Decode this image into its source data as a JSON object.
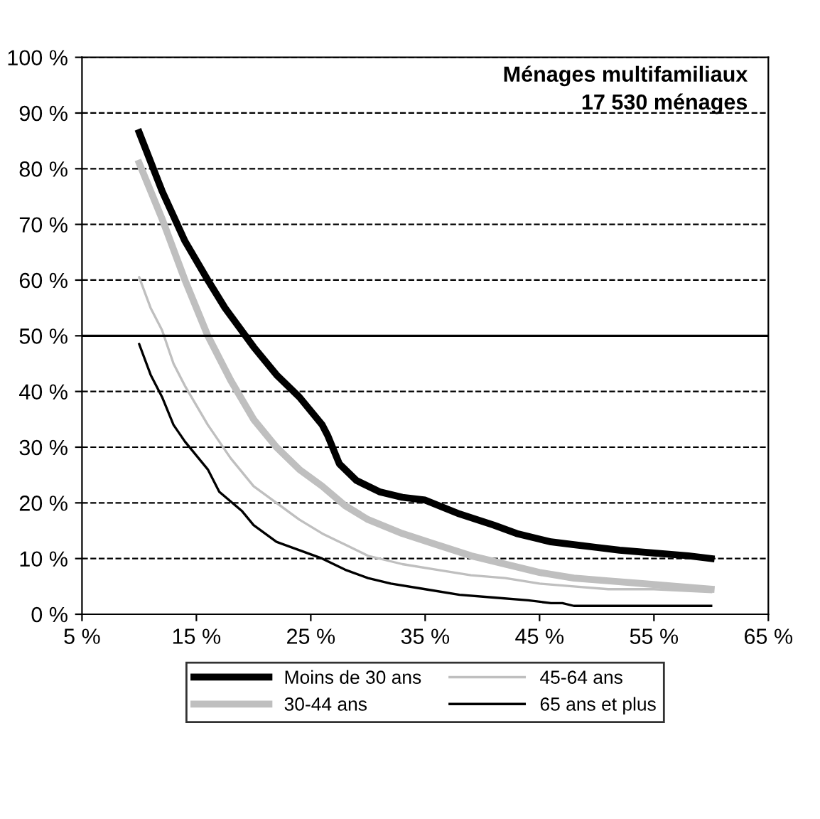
{
  "chart_data": {
    "type": "line",
    "title": "Ménages multifamiliaux",
    "subtitle": "17 530 ménages",
    "xlim": [
      5,
      65
    ],
    "ylim": [
      0,
      100
    ],
    "xticks": [
      {
        "value": 5,
        "label": "5 %"
      },
      {
        "value": 15,
        "label": "15 %"
      },
      {
        "value": 25,
        "label": "25 %"
      },
      {
        "value": 35,
        "label": "35 %"
      },
      {
        "value": 45,
        "label": "45 %"
      },
      {
        "value": 55,
        "label": "55 %"
      },
      {
        "value": 65,
        "label": "65 %"
      }
    ],
    "yticks": [
      {
        "value": 0,
        "label": "0 %"
      },
      {
        "value": 10,
        "label": "10 %"
      },
      {
        "value": 20,
        "label": "20 %"
      },
      {
        "value": 30,
        "label": "30 %"
      },
      {
        "value": 40,
        "label": "40 %"
      },
      {
        "value": 50,
        "label": "50 %"
      },
      {
        "value": 60,
        "label": "60 %"
      },
      {
        "value": 70,
        "label": "70 %"
      },
      {
        "value": 80,
        "label": "80 %"
      },
      {
        "value": 90,
        "label": "90 %"
      },
      {
        "value": 100,
        "label": "100 %"
      }
    ],
    "grid": "y",
    "legend": "bottom",
    "line_style": "solid",
    "ref_lines": [
      {
        "axis": "y",
        "value": 50,
        "color": "#000000"
      }
    ],
    "series": [
      {
        "name": "Moins de 30 ans",
        "color": "#000000",
        "x": [
          10,
          12,
          14,
          16,
          17.5,
          20,
          22,
          24,
          26,
          26.5,
          27.5,
          29,
          31,
          33,
          35,
          38,
          41,
          43,
          46,
          48,
          50,
          52,
          55,
          58,
          60
        ],
        "values": [
          86.5,
          76,
          67,
          60,
          55,
          48,
          43,
          39,
          34,
          32,
          27,
          24,
          22,
          21,
          20.5,
          18,
          16,
          14.5,
          13,
          12.5,
          12,
          11.5,
          11,
          10.5,
          10
        ]
      },
      {
        "name": "30-44 ans",
        "color": "#bfbfbf",
        "x": [
          10,
          12,
          14,
          16,
          18,
          20,
          22,
          24,
          26,
          28,
          30,
          33,
          36,
          39,
          42,
          45,
          48,
          51,
          54,
          57,
          60
        ],
        "values": [
          81,
          71,
          60,
          50,
          42,
          35,
          30,
          26,
          23,
          19.5,
          17,
          14.5,
          12.5,
          10.5,
          9,
          7.5,
          6.5,
          6,
          5.5,
          5,
          4.5
        ]
      },
      {
        "name": "45-64 ans",
        "color": "#bfbfbf",
        "x": [
          10,
          11,
          12,
          13,
          14,
          16,
          18,
          20,
          22,
          24,
          26,
          28,
          30,
          33,
          36,
          39,
          42,
          45,
          48,
          51,
          55,
          60
        ],
        "values": [
          60.5,
          55,
          51,
          45,
          41,
          34,
          28,
          23,
          20,
          17,
          14.5,
          12.5,
          10.5,
          9,
          8,
          7,
          6.5,
          5.5,
          5,
          4.5,
          4.5,
          4
        ]
      },
      {
        "name": "65 ans et plus",
        "color": "#000000",
        "x": [
          10,
          11,
          12,
          13,
          14,
          16,
          17,
          19,
          20,
          22,
          24,
          26,
          28,
          30,
          32,
          35,
          38,
          41,
          44,
          46,
          47,
          48,
          52,
          60
        ],
        "values": [
          48.5,
          43,
          39,
          34,
          31,
          26,
          22,
          18.5,
          16,
          13,
          11.5,
          10,
          8,
          6.5,
          5.5,
          4.5,
          3.5,
          3,
          2.5,
          2,
          2,
          1.5,
          1.5,
          1.5
        ]
      }
    ]
  }
}
